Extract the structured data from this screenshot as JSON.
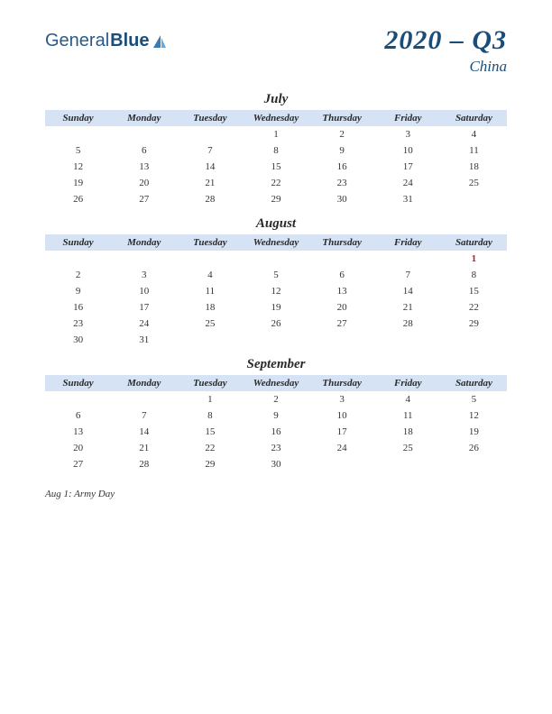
{
  "logo": {
    "text1": "General",
    "text2": "Blue"
  },
  "header": {
    "title": "2020 – Q3",
    "subtitle": "China"
  },
  "style": {
    "header_bg": "#d6e3f4",
    "text_color": "#333333",
    "holiday_color": "#c01818",
    "title_color": "#1a4d7a",
    "page_bg": "#ffffff"
  },
  "day_headers": [
    "Sunday",
    "Monday",
    "Tuesday",
    "Wednesday",
    "Thursday",
    "Friday",
    "Saturday"
  ],
  "months": [
    {
      "name": "July",
      "weeks": [
        [
          "",
          "",
          "",
          "1",
          "2",
          "3",
          "4"
        ],
        [
          "5",
          "6",
          "7",
          "8",
          "9",
          "10",
          "11"
        ],
        [
          "12",
          "13",
          "14",
          "15",
          "16",
          "17",
          "18"
        ],
        [
          "19",
          "20",
          "21",
          "22",
          "23",
          "24",
          "25"
        ],
        [
          "26",
          "27",
          "28",
          "29",
          "30",
          "31",
          ""
        ]
      ],
      "holidays": []
    },
    {
      "name": "August",
      "weeks": [
        [
          "",
          "",
          "",
          "",
          "",
          "",
          "1"
        ],
        [
          "2",
          "3",
          "4",
          "5",
          "6",
          "7",
          "8"
        ],
        [
          "9",
          "10",
          "11",
          "12",
          "13",
          "14",
          "15"
        ],
        [
          "16",
          "17",
          "18",
          "19",
          "20",
          "21",
          "22"
        ],
        [
          "23",
          "24",
          "25",
          "26",
          "27",
          "28",
          "29"
        ],
        [
          "30",
          "31",
          "",
          "",
          "",
          "",
          ""
        ]
      ],
      "holidays": [
        "1"
      ]
    },
    {
      "name": "September",
      "weeks": [
        [
          "",
          "",
          "1",
          "2",
          "3",
          "4",
          "5"
        ],
        [
          "6",
          "7",
          "8",
          "9",
          "10",
          "11",
          "12"
        ],
        [
          "13",
          "14",
          "15",
          "16",
          "17",
          "18",
          "19"
        ],
        [
          "20",
          "21",
          "22",
          "23",
          "24",
          "25",
          "26"
        ],
        [
          "27",
          "28",
          "29",
          "30",
          "",
          "",
          ""
        ]
      ],
      "holidays": []
    }
  ],
  "notes": [
    "Aug 1: Army Day"
  ]
}
